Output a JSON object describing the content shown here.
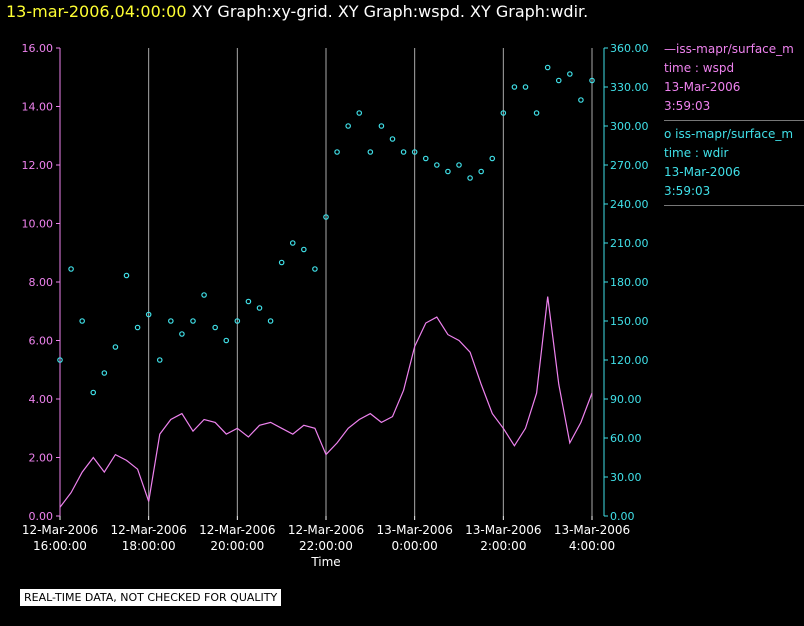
{
  "header": {
    "timestamp": "13-mar-2006,04:00:00",
    "graphs": "XY Graph:xy-grid.  XY Graph:wspd.  XY Graph:wdir."
  },
  "legend": [
    {
      "symbol": "—",
      "name": "iss-mapr/surface_m",
      "var": "time : wspd",
      "date": "13-Mar-2006",
      "time": "3:59:03",
      "color": "#ee82ee"
    },
    {
      "symbol": "o",
      "name": "iss-mapr/surface_m",
      "var": "time : wdir",
      "date": "13-Mar-2006",
      "time": "3:59:03",
      "color": "#40e0e8"
    }
  ],
  "footer": "REAL-TIME DATA, NOT CHECKED FOR QUALITY",
  "colors": {
    "wspd": "#ee82ee",
    "wdir": "#40e0e8",
    "grid": "#aaaaaa",
    "axis_text": "#ffffff"
  },
  "chart_data": {
    "type": "line",
    "xlabel": "Time",
    "x_ticks": [
      {
        "date": "12-Mar-2006",
        "time": "16:00:00"
      },
      {
        "date": "12-Mar-2006",
        "time": "18:00:00"
      },
      {
        "date": "12-Mar-2006",
        "time": "20:00:00"
      },
      {
        "date": "12-Mar-2006",
        "time": "22:00:00"
      },
      {
        "date": "13-Mar-2006",
        "time": "0:00:00"
      },
      {
        "date": "13-Mar-2006",
        "time": "2:00:00"
      },
      {
        "date": "13-Mar-2006",
        "time": "4:00:00"
      }
    ],
    "xlim": [
      "12-Mar-2006 16:00",
      "13-Mar-2006 04:00"
    ],
    "y_left": {
      "ylim": [
        0,
        16
      ],
      "ticks": [
        "0.00",
        "2.00",
        "4.00",
        "6.00",
        "8.00",
        "10.00",
        "12.00",
        "14.00",
        "16.00"
      ]
    },
    "y_right": {
      "ylim": [
        0,
        360
      ],
      "ticks": [
        "0.00",
        "30.00",
        "60.00",
        "90.00",
        "120.00",
        "150.00",
        "180.00",
        "210.00",
        "240.00",
        "270.00",
        "300.00",
        "330.00",
        "360.00"
      ]
    },
    "grid": "vertical",
    "series": [
      {
        "axis": "left",
        "style": "line",
        "x": [
          "12-Mar-2006 16:00",
          "12-Mar-2006 16:15",
          "12-Mar-2006 16:30",
          "12-Mar-2006 16:45",
          "12-Mar-2006 17:00",
          "12-Mar-2006 17:15",
          "12-Mar-2006 17:30",
          "12-Mar-2006 17:45",
          "12-Mar-2006 18:00",
          "12-Mar-2006 18:15",
          "12-Mar-2006 18:30",
          "12-Mar-2006 18:45",
          "12-Mar-2006 19:00",
          "12-Mar-2006 19:15",
          "12-Mar-2006 19:30",
          "12-Mar-2006 19:45",
          "12-Mar-2006 20:00",
          "12-Mar-2006 20:15",
          "12-Mar-2006 20:30",
          "12-Mar-2006 20:45",
          "12-Mar-2006 21:00",
          "12-Mar-2006 21:15",
          "12-Mar-2006 21:30",
          "12-Mar-2006 21:45",
          "12-Mar-2006 22:00",
          "12-Mar-2006 22:15",
          "12-Mar-2006 22:30",
          "12-Mar-2006 22:45",
          "12-Mar-2006 23:00",
          "12-Mar-2006 23:15",
          "12-Mar-2006 23:30",
          "12-Mar-2006 23:45",
          "13-Mar-2006 00:00",
          "13-Mar-2006 00:15",
          "13-Mar-2006 00:30",
          "13-Mar-2006 00:45",
          "13-Mar-2006 01:00",
          "13-Mar-2006 01:15",
          "13-Mar-2006 01:30",
          "13-Mar-2006 01:45",
          "13-Mar-2006 02:00",
          "13-Mar-2006 02:15",
          "13-Mar-2006 02:30",
          "13-Mar-2006 02:45",
          "13-Mar-2006 03:00",
          "13-Mar-2006 03:15",
          "13-Mar-2006 03:30",
          "13-Mar-2006 03:45",
          "13-Mar-2006 04:00"
        ],
        "values": [
          0.3,
          0.8,
          1.5,
          2.0,
          1.5,
          2.1,
          1.9,
          1.6,
          0.5,
          2.8,
          3.3,
          3.5,
          2.9,
          3.3,
          3.2,
          2.8,
          3.0,
          2.7,
          3.1,
          3.2,
          3.0,
          2.8,
          3.1,
          3.0,
          2.1,
          2.5,
          3.0,
          3.3,
          3.5,
          3.2,
          3.4,
          4.3,
          5.8,
          6.6,
          6.8,
          6.2,
          6.0,
          5.6,
          4.5,
          3.5,
          3.0,
          2.4,
          3.0,
          4.2,
          7.5,
          4.5,
          2.5,
          3.2,
          4.2
        ]
      },
      {
        "axis": "right",
        "style": "marker",
        "x": [
          "12-Mar-2006 16:00",
          "12-Mar-2006 16:15",
          "12-Mar-2006 16:30",
          "12-Mar-2006 16:45",
          "12-Mar-2006 17:00",
          "12-Mar-2006 17:15",
          "12-Mar-2006 17:30",
          "12-Mar-2006 17:45",
          "12-Mar-2006 18:00",
          "12-Mar-2006 18:15",
          "12-Mar-2006 18:30",
          "12-Mar-2006 18:45",
          "12-Mar-2006 19:00",
          "12-Mar-2006 19:15",
          "12-Mar-2006 19:30",
          "12-Mar-2006 19:45",
          "12-Mar-2006 20:00",
          "12-Mar-2006 20:15",
          "12-Mar-2006 20:30",
          "12-Mar-2006 20:45",
          "12-Mar-2006 21:00",
          "12-Mar-2006 21:15",
          "12-Mar-2006 21:30",
          "12-Mar-2006 21:45",
          "12-Mar-2006 22:00",
          "12-Mar-2006 22:15",
          "12-Mar-2006 22:30",
          "12-Mar-2006 22:45",
          "12-Mar-2006 23:00",
          "12-Mar-2006 23:15",
          "12-Mar-2006 23:30",
          "12-Mar-2006 23:45",
          "13-Mar-2006 00:00",
          "13-Mar-2006 00:15",
          "13-Mar-2006 00:30",
          "13-Mar-2006 00:45",
          "13-Mar-2006 01:00",
          "13-Mar-2006 01:15",
          "13-Mar-2006 01:30",
          "13-Mar-2006 01:45",
          "13-Mar-2006 02:00",
          "13-Mar-2006 02:15",
          "13-Mar-2006 02:30",
          "13-Mar-2006 02:45",
          "13-Mar-2006 03:00",
          "13-Mar-2006 03:15",
          "13-Mar-2006 03:30",
          "13-Mar-2006 03:45",
          "13-Mar-2006 04:00"
        ],
        "values": [
          120,
          190,
          150,
          95,
          110,
          130,
          185,
          145,
          155,
          120,
          150,
          140,
          150,
          170,
          145,
          135,
          150,
          165,
          160,
          150,
          195,
          210,
          205,
          190,
          230,
          280,
          300,
          310,
          280,
          300,
          290,
          280,
          280,
          275,
          270,
          265,
          270,
          260,
          265,
          275,
          310,
          330,
          330,
          310,
          345,
          335,
          340,
          320,
          335
        ]
      }
    ]
  }
}
